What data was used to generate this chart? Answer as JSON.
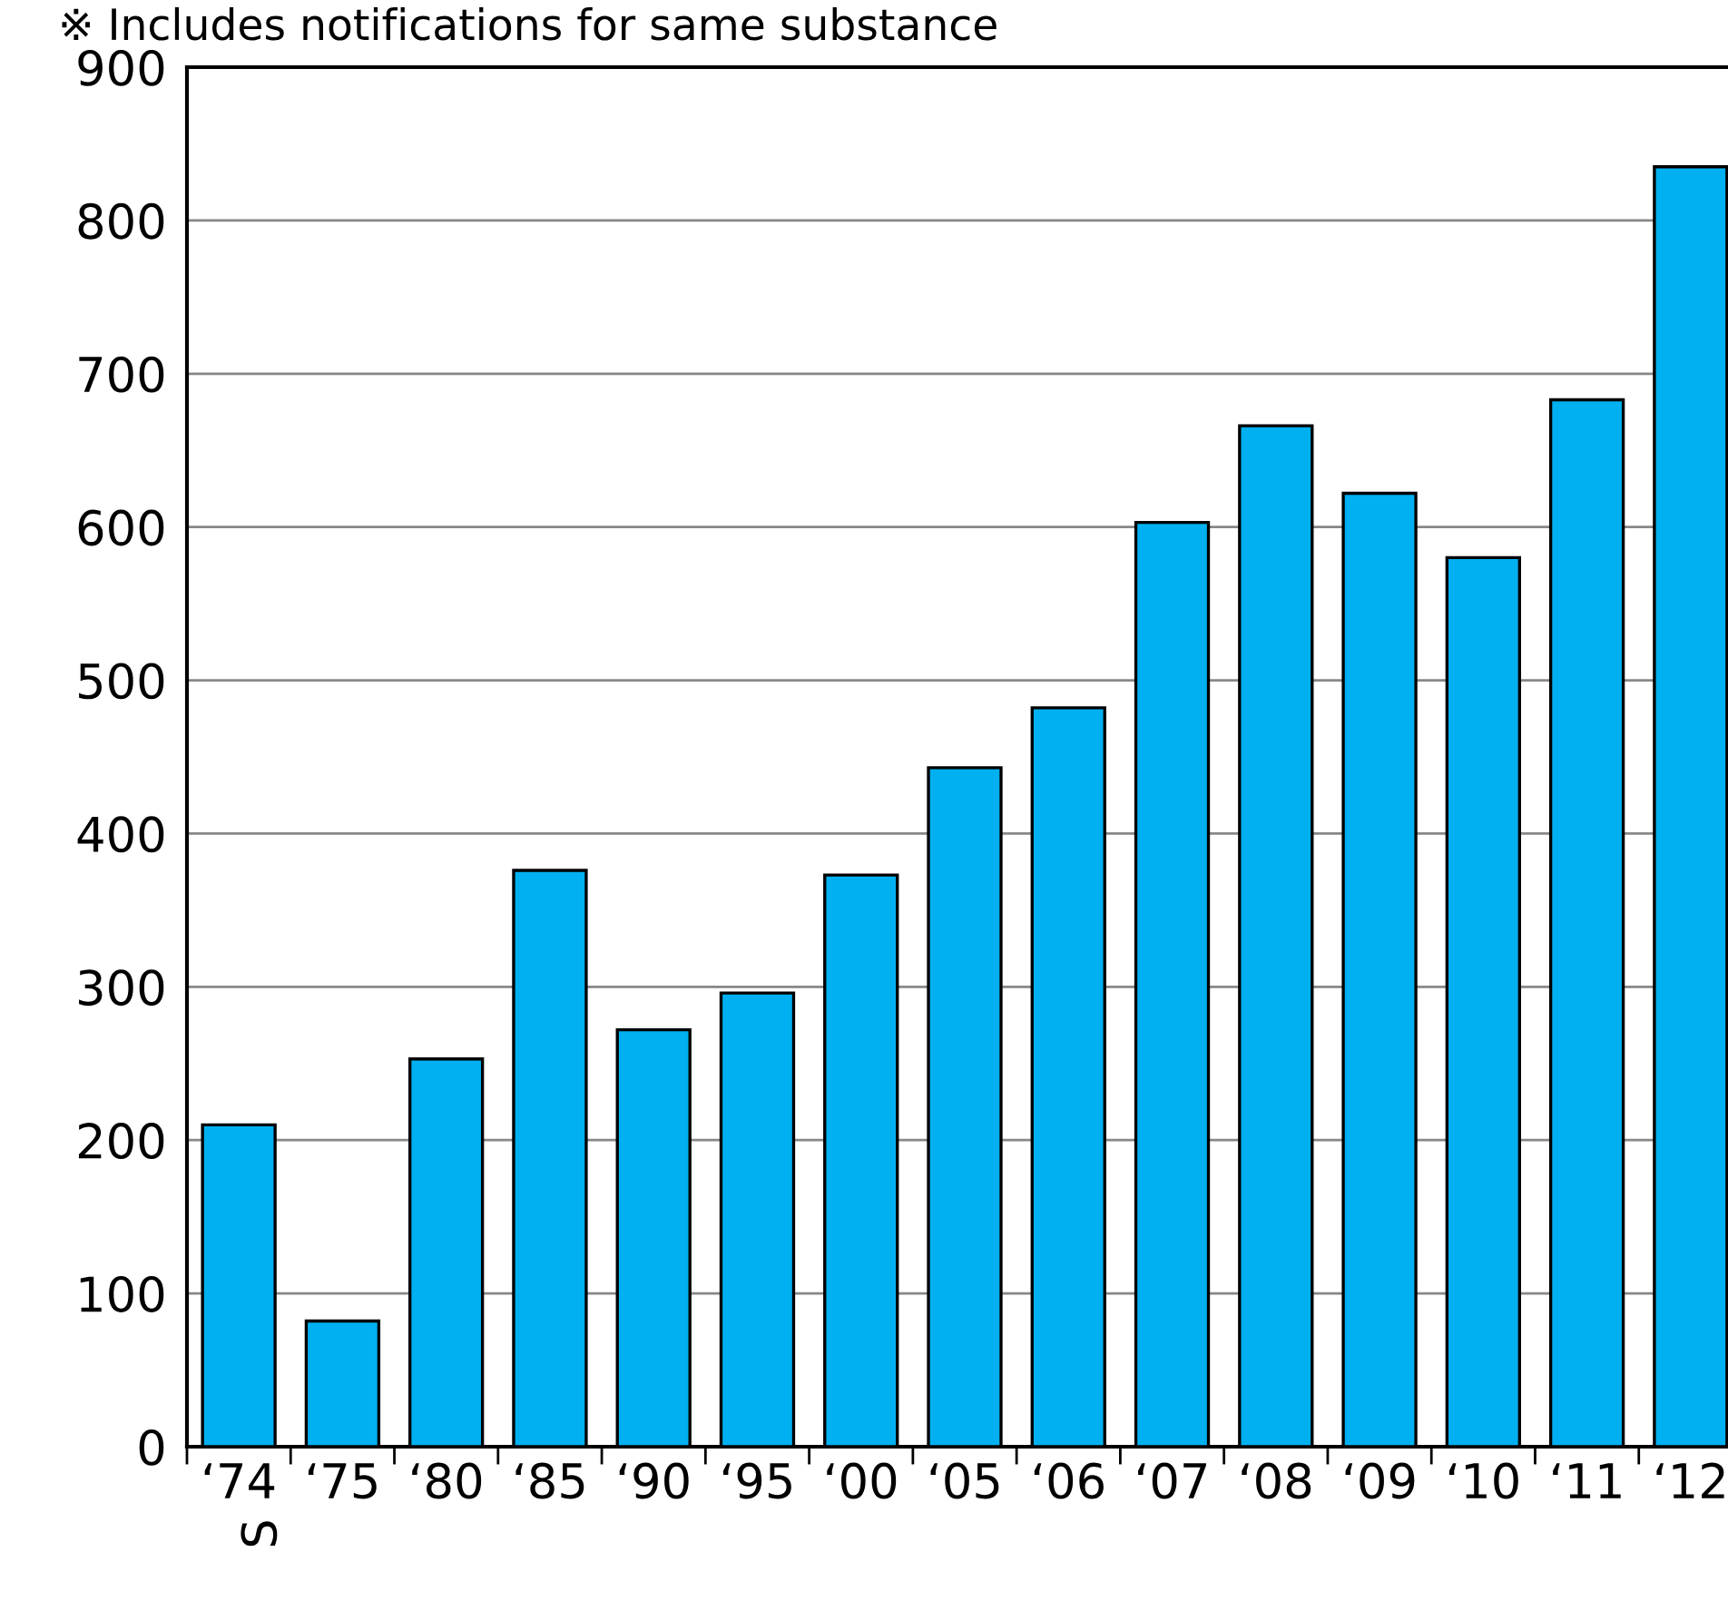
{
  "chart_data": {
    "type": "bar",
    "title": "※ Includes notifications for same substance",
    "categories": [
      "‘74",
      "‘75",
      "‘80",
      "‘85",
      "‘90",
      "‘95",
      "‘00",
      "‘05",
      "‘06",
      "‘07",
      "‘08",
      "‘09",
      "‘10",
      "‘11",
      "‘12"
    ],
    "values": [
      210,
      82,
      253,
      376,
      272,
      296,
      373,
      443,
      482,
      603,
      666,
      622,
      580,
      683,
      835
    ],
    "color": "#00b0f0",
    "ylim": [
      0,
      900
    ],
    "yticks": [
      0,
      100,
      200,
      300,
      400,
      500,
      600,
      700,
      800,
      900
    ],
    "grid": "y",
    "annotations": [
      "S"
    ]
  }
}
